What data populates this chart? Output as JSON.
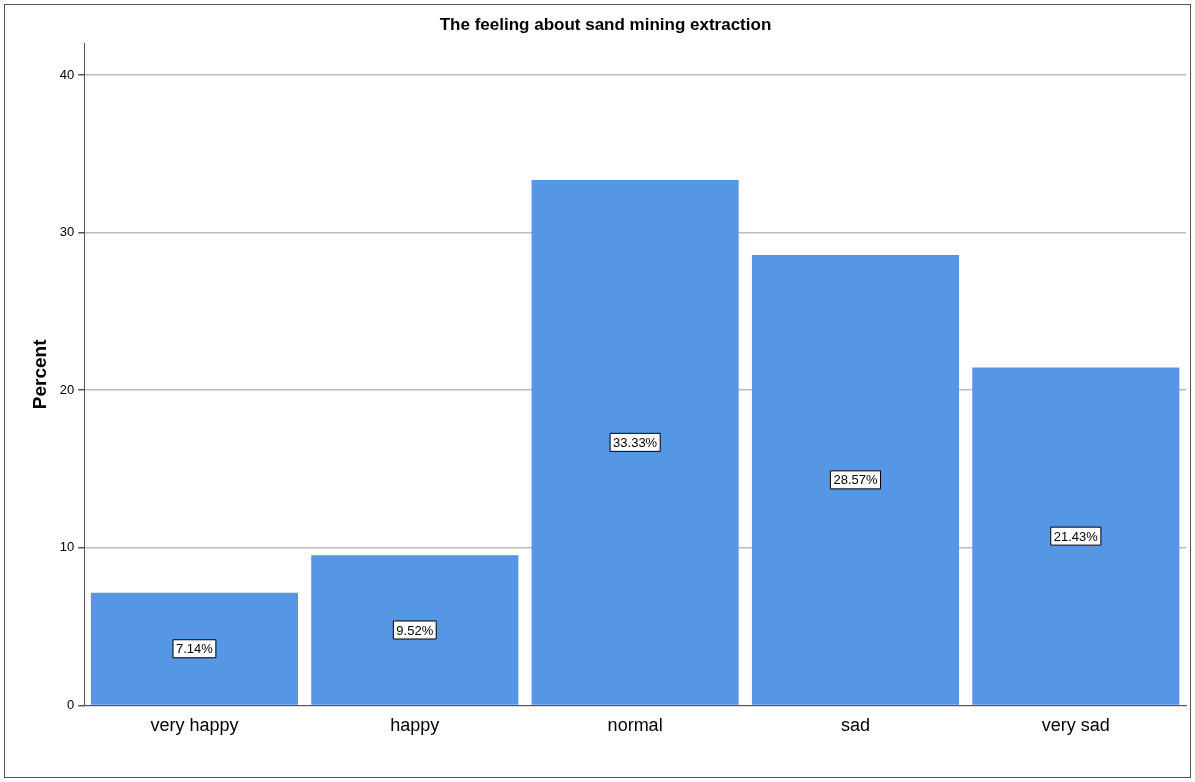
{
  "chart_data": {
    "type": "bar",
    "title": "The feeling about sand mining extraction",
    "ylabel": "Percent",
    "categories": [
      "very happy",
      "happy",
      "normal",
      "sad",
      "very sad"
    ],
    "values": [
      7.14,
      9.52,
      33.33,
      28.57,
      21.43
    ],
    "value_labels": [
      "7.14%",
      "9.52%",
      "33.33%",
      "28.57%",
      "21.43%"
    ],
    "color": "#5596e5",
    "ylim": [
      0,
      42
    ],
    "yticks": [
      0,
      10,
      20,
      30,
      40
    ],
    "grid": "y",
    "legend": false
  }
}
